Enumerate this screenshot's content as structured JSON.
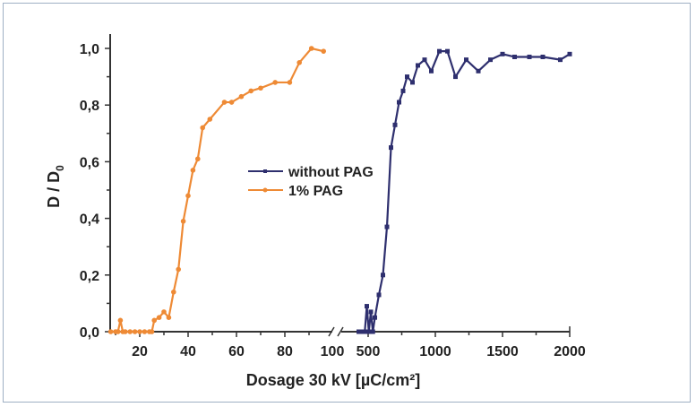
{
  "chart_data": {
    "type": "line",
    "title": "",
    "xlabel": "Dosage 30 kV [µC/cm²]",
    "ylabel_main": "D / D",
    "ylabel_sub": "0",
    "ylim": [
      0,
      1.0
    ],
    "yticks": [
      "0,0",
      "0,2",
      "0,4",
      "0,6",
      "0,8",
      "1,0"
    ],
    "ytick_values": [
      0,
      0.2,
      0.4,
      0.6,
      0.8,
      1.0
    ],
    "x_broken_axis": true,
    "x_segments": [
      {
        "range": [
          7,
          100
        ],
        "ticks": [
          20,
          40,
          60,
          80,
          100
        ],
        "tick_labels": [
          "20",
          "40",
          "60",
          "80",
          "100"
        ]
      },
      {
        "range": [
          420,
          2000
        ],
        "ticks": [
          500,
          1000,
          1500,
          2000
        ],
        "tick_labels": [
          "500",
          "1000",
          "1500",
          "2000"
        ]
      }
    ],
    "legend_position": "center",
    "series": [
      {
        "name": "without PAG",
        "color": "#2e2f6e",
        "marker": "square",
        "segment": 1,
        "x": [
          430,
          445,
          460,
          475,
          490,
          505,
          520,
          535,
          550,
          580,
          610,
          640,
          670,
          700,
          730,
          760,
          790,
          830,
          870,
          920,
          970,
          1030,
          1090,
          1150,
          1230,
          1320,
          1410,
          1500,
          1590,
          1700,
          1800,
          1930,
          2000
        ],
        "y": [
          0.0,
          0.0,
          0.0,
          0.0,
          0.09,
          0.0,
          0.07,
          0.0,
          0.05,
          0.13,
          0.2,
          0.37,
          0.65,
          0.73,
          0.81,
          0.85,
          0.9,
          0.88,
          0.94,
          0.96,
          0.92,
          0.99,
          0.99,
          0.9,
          0.96,
          0.92,
          0.96,
          0.98,
          0.97,
          0.97,
          0.97,
          0.96,
          0.98
        ]
      },
      {
        "name": "1% PAG",
        "color": "#ee8a35",
        "marker": "circle",
        "segment": 0,
        "x": [
          8,
          10,
          11,
          12,
          13,
          14,
          16,
          18,
          20,
          22,
          24,
          25,
          26,
          28,
          30,
          32,
          34,
          36,
          38,
          40,
          42,
          44,
          46,
          49,
          55,
          58,
          62,
          66,
          70,
          76,
          82,
          86,
          91,
          96
        ],
        "y": [
          0.0,
          0.0,
          0.0,
          0.04,
          0.0,
          0.0,
          0.0,
          0.0,
          0.0,
          0.0,
          0.0,
          0.0,
          0.04,
          0.05,
          0.07,
          0.05,
          0.14,
          0.22,
          0.39,
          0.48,
          0.57,
          0.61,
          0.72,
          0.75,
          0.81,
          0.81,
          0.83,
          0.85,
          0.86,
          0.88,
          0.88,
          0.95,
          1.0,
          0.99
        ]
      }
    ]
  }
}
